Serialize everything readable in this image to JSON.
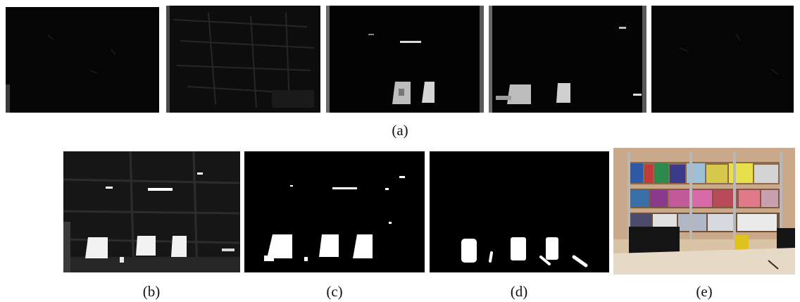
{
  "figure": {
    "row_a_caption": "(a)",
    "captions": {
      "b": "(b)",
      "c": "(c)",
      "d": "(d)",
      "e": "(e)"
    }
  }
}
